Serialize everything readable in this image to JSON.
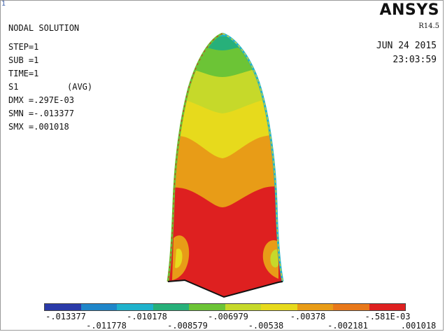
{
  "window_marker": "1",
  "logo": "ANSYS",
  "version": "R14.5",
  "title": "NODAL SOLUTION",
  "step": "STEP=1",
  "sub": "SUB =1",
  "time": "TIME=1",
  "quantity": "S1",
  "averaging": "(AVG)",
  "dmx": "DMX =.297E-03",
  "smn": "SMN =-.013377",
  "smx": "SMX =.001018",
  "date": "JUN 24 2015",
  "clock": "23:03:59",
  "legend": {
    "colors": [
      "#2a3aa8",
      "#1f86c9",
      "#1fb2cc",
      "#27b07a",
      "#6cc436",
      "#c6d92a",
      "#e7da1c",
      "#e89c17",
      "#e8781a",
      "#de2020"
    ],
    "upper_labels": [
      "-.013377",
      "-.010178",
      "-.006979",
      "-.00378",
      "-.581E-03"
    ],
    "lower_labels": [
      "-.011778",
      "-.008579",
      "-.00538",
      "-.002181",
      ".001018"
    ]
  }
}
